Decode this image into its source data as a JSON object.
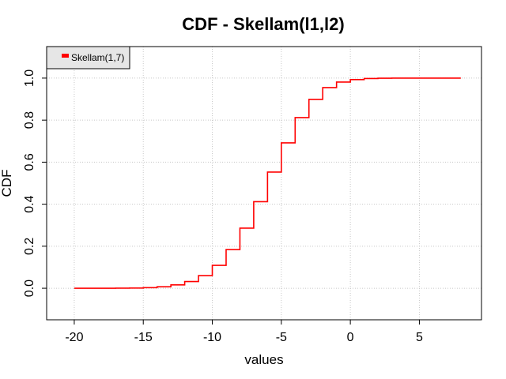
{
  "chart_data": {
    "type": "line",
    "step": true,
    "title": "CDF - Skellam(l1,l2)",
    "xlabel": "values",
    "ylabel": "CDF",
    "xlim": [
      -22,
      9.5
    ],
    "ylim": [
      -0.15,
      1.15
    ],
    "xticks": [
      -20,
      -15,
      -10,
      -5,
      0,
      5
    ],
    "xtick_labels": [
      "-20",
      "-15",
      "-10",
      "-5",
      "0",
      "5"
    ],
    "yticks": [
      0.0,
      0.2,
      0.4,
      0.6,
      0.8,
      1.0
    ],
    "ytick_labels": [
      "0.0",
      "0.2",
      "0.4",
      "0.6",
      "0.8",
      "1.0"
    ],
    "grid": true,
    "legend_position": "top-left",
    "series": [
      {
        "name": "Skellam(1,7)",
        "color": "#ff0000",
        "x": [
          -20,
          -19,
          -18,
          -17,
          -16,
          -15,
          -14,
          -13,
          -12,
          -11,
          -10,
          -9,
          -8,
          -7,
          -6,
          -5,
          -4,
          -3,
          -2,
          -1,
          0,
          1,
          2,
          3,
          4,
          5,
          6,
          7,
          8
        ],
        "y": [
          0.0,
          0.0,
          0.0,
          0.0005,
          0.001,
          0.003,
          0.007,
          0.016,
          0.032,
          0.06,
          0.109,
          0.184,
          0.286,
          0.412,
          0.553,
          0.692,
          0.812,
          0.899,
          0.955,
          0.981,
          0.993,
          0.998,
          0.9995,
          1.0,
          1.0,
          1.0,
          1.0,
          1.0,
          1.0
        ]
      }
    ]
  }
}
